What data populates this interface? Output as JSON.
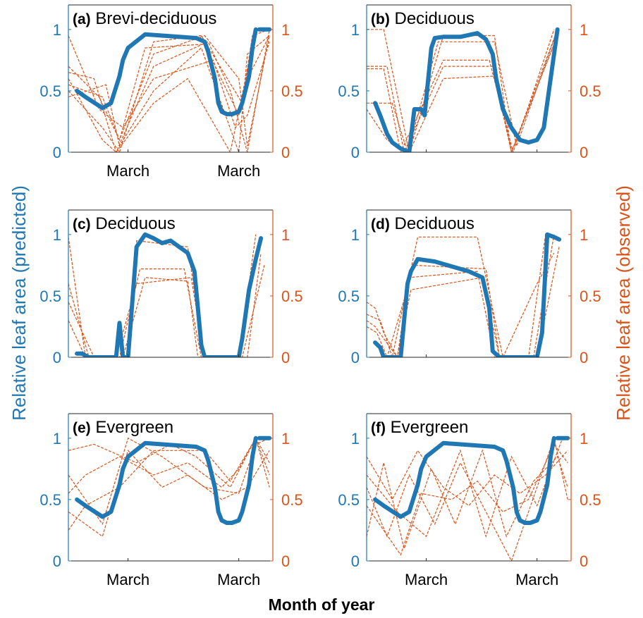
{
  "figure": {
    "y_left_label": "Relative leaf area (predicted)",
    "y_right_label": "Relative leaf area (observed)",
    "x_label": "Month of year",
    "colors": {
      "predicted": "#1f77b4",
      "observed": "#d9541a",
      "axis": "#262626"
    }
  },
  "chart_data": [
    {
      "type": "line",
      "title_tag": "(a)",
      "title": "Brevi-deciduous",
      "x_ticks": [
        "March",
        "March"
      ],
      "ylim_left": [
        0,
        1.2
      ],
      "ylim_right": [
        0,
        1.2
      ],
      "yticks_left": [
        "0",
        "0.5",
        "1"
      ],
      "yticks_right": [
        "0",
        "0.5",
        "1"
      ],
      "predicted": {
        "x": [
          0.05,
          0.1,
          0.2,
          0.25,
          0.3,
          0.32,
          0.35,
          0.45,
          0.55,
          0.65,
          0.75,
          0.8,
          0.82,
          0.86,
          0.88,
          0.9,
          0.93,
          0.96,
          1.0,
          1.02,
          1.06,
          1.08,
          1.1
        ],
        "y": [
          0.5,
          0.45,
          0.36,
          0.4,
          0.62,
          0.75,
          0.85,
          0.96,
          0.95,
          0.94,
          0.93,
          0.9,
          0.82,
          0.6,
          0.4,
          0.33,
          0.31,
          0.31,
          0.33,
          0.4,
          0.62,
          0.85,
          1.0
        ],
        "tail_x": [
          1.12,
          1.18
        ],
        "tail_y": [
          1.0,
          1.0
        ]
      },
      "observed": [
        [
          0.0,
          0.55,
          0.2,
          0.45,
          0.3,
          0.1,
          0.5,
          0.8,
          0.8,
          0.95,
          1.0,
          0.6,
          1.05,
          0.05,
          1.18,
          0.95
        ],
        [
          0.0,
          0.65,
          0.15,
          0.6,
          0.28,
          0.0,
          0.5,
          0.7,
          0.82,
          0.9,
          0.95,
          0.5,
          1.05,
          0.0,
          1.18,
          1.0
        ],
        [
          0.0,
          0.95,
          0.18,
          0.35,
          0.32,
          0.2,
          0.5,
          0.6,
          0.85,
          0.75,
          0.98,
          0.2,
          1.05,
          0.3,
          1.18,
          0.9
        ],
        [
          0.0,
          0.45,
          0.22,
          0.55,
          0.3,
          0.05,
          0.5,
          0.5,
          0.78,
          0.85,
          1.0,
          0.0,
          1.05,
          0.8,
          1.18,
          0.95
        ],
        [
          0.0,
          0.5,
          0.2,
          0.2,
          0.3,
          0.0,
          0.5,
          0.9,
          0.78,
          0.95,
          1.02,
          0.4,
          1.08,
          0.95,
          1.18,
          1.0
        ],
        [
          0.0,
          0.7,
          0.18,
          0.45,
          0.3,
          0.1,
          0.45,
          0.85,
          0.8,
          0.88,
          1.0,
          0.3,
          1.05,
          0.6,
          1.18,
          0.95
        ],
        [
          0.0,
          0.6,
          0.2,
          0.1,
          0.28,
          0.0,
          0.5,
          0.4,
          0.7,
          0.6,
          0.95,
          0.0,
          1.1,
          1.0,
          1.18,
          1.0
        ]
      ]
    },
    {
      "type": "line",
      "title_tag": "(b)",
      "title": "Deciduous",
      "x_ticks": [],
      "ylim_left": [
        0,
        1.2
      ],
      "ylim_right": [
        0,
        1.2
      ],
      "yticks_left": [
        "0",
        "0.5",
        "1"
      ],
      "yticks_right": [
        "0",
        "0.5",
        "1"
      ],
      "predicted": {
        "x": [
          0.05,
          0.08,
          0.12,
          0.15,
          0.2,
          0.25,
          0.28,
          0.32,
          0.34,
          0.38,
          0.4,
          0.45,
          0.55,
          0.65,
          0.7,
          0.74,
          0.76,
          0.8,
          0.85,
          0.9,
          0.95,
          1.0,
          1.04,
          1.08,
          1.12
        ],
        "y": [
          0.4,
          0.3,
          0.15,
          0.08,
          0.03,
          0.0,
          0.35,
          0.35,
          0.3,
          0.85,
          0.93,
          0.94,
          0.94,
          0.97,
          0.92,
          0.8,
          0.6,
          0.35,
          0.2,
          0.1,
          0.08,
          0.1,
          0.2,
          0.6,
          1.0
        ]
      },
      "observed": [
        [
          0.0,
          1.0,
          0.1,
          1.0,
          0.25,
          0.0,
          0.45,
          0.95,
          0.75,
          0.95,
          0.85,
          0.0,
          1.12,
          1.0
        ],
        [
          0.0,
          0.7,
          0.12,
          0.7,
          0.22,
          0.0,
          0.45,
          0.7,
          0.75,
          0.7,
          0.85,
          0.0,
          1.12,
          0.95
        ],
        [
          0.0,
          0.4,
          0.15,
          0.4,
          0.24,
          0.0,
          0.42,
          0.9,
          0.75,
          0.9,
          0.88,
          0.05,
          1.12,
          1.0
        ],
        [
          0.0,
          0.35,
          0.12,
          0.1,
          0.25,
          0.0,
          0.45,
          0.6,
          0.75,
          0.62,
          0.85,
          0.0,
          1.12,
          0.95
        ],
        [
          0.0,
          0.68,
          0.1,
          0.68,
          0.2,
          0.0,
          0.45,
          0.75,
          0.72,
          0.75,
          0.86,
          0.0,
          1.1,
          1.0
        ]
      ]
    },
    {
      "type": "line",
      "title_tag": "(c)",
      "title": "Deciduous",
      "x_ticks": [],
      "ylim_left": [
        0,
        1.2
      ],
      "ylim_right": [
        0,
        1.2
      ],
      "yticks_left": [
        "0",
        "0.5",
        "1"
      ],
      "yticks_right": [
        "0",
        "0.5",
        "1"
      ],
      "predicted": {
        "x": [
          0.05,
          0.08,
          0.12,
          0.2,
          0.28,
          0.3,
          0.32,
          0.35,
          0.4,
          0.45,
          0.5,
          0.55,
          0.6,
          0.65,
          0.7,
          0.74,
          0.76,
          0.78,
          0.8,
          0.85,
          0.9,
          0.95,
          1.0,
          1.02,
          1.06,
          1.1,
          1.13
        ],
        "y": [
          0.03,
          0.03,
          0.0,
          0.0,
          0.0,
          0.28,
          0.0,
          0.0,
          0.9,
          1.0,
          0.97,
          0.93,
          0.95,
          0.9,
          0.85,
          0.7,
          0.4,
          0.1,
          0.0,
          0.0,
          0.0,
          0.0,
          0.0,
          0.15,
          0.55,
          0.8,
          0.97
        ]
      },
      "observed": [
        [
          0.0,
          0.98,
          0.1,
          0.0,
          0.35,
          0.0,
          0.4,
          0.95,
          0.7,
          0.9,
          0.8,
          0.0,
          1.0,
          0.0,
          1.1,
          1.0
        ],
        [
          0.0,
          0.6,
          0.12,
          0.0,
          0.3,
          0.0,
          0.42,
          0.72,
          0.68,
          0.72,
          0.78,
          0.0,
          1.02,
          0.0,
          1.15,
          0.75
        ],
        [
          0.0,
          0.45,
          0.15,
          0.0,
          0.32,
          0.0,
          0.45,
          0.65,
          0.7,
          0.62,
          0.76,
          0.0,
          1.0,
          0.0,
          1.12,
          0.95
        ],
        [
          0.0,
          0.3,
          0.1,
          0.0,
          0.28,
          0.0,
          0.4,
          0.6,
          0.72,
          0.65,
          0.8,
          0.0,
          1.05,
          0.0,
          1.13,
          0.85
        ]
      ]
    },
    {
      "type": "line",
      "title_tag": "(d)",
      "title": "Deciduous",
      "x_ticks": [],
      "ylim_left": [
        0,
        1.2
      ],
      "ylim_right": [
        0,
        1.2
      ],
      "yticks_left": [
        "0",
        "0.5",
        "1"
      ],
      "yticks_right": [
        "0",
        "0.5",
        "1"
      ],
      "predicted": {
        "x": [
          0.05,
          0.08,
          0.1,
          0.15,
          0.2,
          0.24,
          0.26,
          0.3,
          0.4,
          0.5,
          0.6,
          0.68,
          0.72,
          0.74,
          0.78,
          0.85,
          0.9,
          0.95,
          1.0,
          1.03,
          1.06,
          1.1,
          1.13
        ],
        "y": [
          0.12,
          0.08,
          0.0,
          0.0,
          0.0,
          0.6,
          0.7,
          0.8,
          0.78,
          0.74,
          0.7,
          0.65,
          0.4,
          0.05,
          0.0,
          0.0,
          0.0,
          0.0,
          0.0,
          0.2,
          1.0,
          0.98,
          0.96
        ]
      },
      "observed": [
        [
          0.0,
          0.45,
          0.05,
          0.4,
          0.1,
          0.2,
          0.18,
          0.0,
          0.25,
          0.65,
          0.65,
          0.7,
          0.75,
          0.0,
          0.95,
          0.0,
          1.05,
          1.0,
          1.13,
          0.95
        ],
        [
          0.0,
          0.35,
          0.08,
          0.3,
          0.15,
          0.0,
          0.3,
          0.98,
          0.65,
          0.98,
          0.8,
          0.0,
          1.0,
          0.6,
          1.1,
          0.85
        ],
        [
          0.0,
          0.25,
          0.06,
          0.2,
          0.12,
          0.0,
          0.28,
          0.75,
          0.7,
          0.72,
          0.78,
          0.0,
          0.98,
          0.0,
          1.1,
          1.0
        ],
        [
          0.0,
          0.3,
          0.05,
          0.25,
          0.18,
          0.0,
          0.26,
          0.55,
          0.68,
          0.65,
          0.78,
          0.0,
          1.0,
          0.0,
          1.13,
          0.9
        ]
      ]
    },
    {
      "type": "line",
      "title_tag": "(e)",
      "title": "Evergreen",
      "x_ticks": [
        "March",
        "March"
      ],
      "ylim_left": [
        0,
        1.2
      ],
      "ylim_right": [
        0,
        1.2
      ],
      "yticks_left": [
        "0",
        "0.5",
        "1"
      ],
      "yticks_right": [
        "0",
        "0.5",
        "1"
      ],
      "predicted": {
        "x": [
          0.05,
          0.1,
          0.2,
          0.25,
          0.3,
          0.32,
          0.35,
          0.45,
          0.55,
          0.65,
          0.75,
          0.8,
          0.82,
          0.86,
          0.88,
          0.9,
          0.93,
          0.96,
          1.0,
          1.02,
          1.06,
          1.08,
          1.1
        ],
        "y": [
          0.5,
          0.45,
          0.36,
          0.4,
          0.62,
          0.75,
          0.85,
          0.96,
          0.95,
          0.94,
          0.93,
          0.9,
          0.82,
          0.6,
          0.4,
          0.33,
          0.31,
          0.31,
          0.33,
          0.4,
          0.62,
          0.85,
          1.0
        ],
        "tail_x": [
          1.12,
          1.18
        ],
        "tail_y": [
          1.0,
          1.0
        ]
      },
      "observed": [
        [
          0.0,
          0.55,
          0.1,
          0.7,
          0.3,
          0.85,
          0.5,
          0.7,
          0.7,
          0.8,
          0.9,
          0.6,
          1.0,
          0.75,
          1.1,
          1.0,
          1.18,
          0.8
        ],
        [
          0.0,
          0.7,
          0.2,
          0.3,
          0.35,
          1.0,
          0.55,
          0.85,
          0.8,
          0.6,
          1.0,
          0.55,
          1.1,
          0.95,
          1.18,
          1.0
        ],
        [
          0.0,
          0.9,
          0.15,
          0.95,
          0.4,
          0.8,
          0.6,
          0.95,
          0.75,
          0.85,
          0.95,
          0.6,
          1.1,
          1.0,
          1.18,
          0.7
        ],
        [
          0.0,
          0.4,
          0.2,
          0.2,
          0.35,
          0.9,
          0.55,
          0.6,
          0.7,
          0.7,
          0.9,
          0.5,
          1.05,
          0.6,
          1.18,
          0.9
        ],
        [
          0.0,
          0.25,
          0.1,
          0.45,
          0.3,
          0.6,
          0.5,
          0.9,
          0.8,
          0.9,
          0.95,
          0.65,
          1.1,
          1.0,
          1.18,
          0.6
        ]
      ]
    },
    {
      "type": "line",
      "title_tag": "(f)",
      "title": "Evergreen",
      "x_ticks": [
        "March",
        "March"
      ],
      "ylim_left": [
        0,
        1.2
      ],
      "ylim_right": [
        0,
        1.2
      ],
      "yticks_left": [
        "0",
        "0.5",
        "1"
      ],
      "yticks_right": [
        "0",
        "0.5",
        "1"
      ],
      "predicted": {
        "x": [
          0.05,
          0.1,
          0.2,
          0.25,
          0.3,
          0.32,
          0.35,
          0.45,
          0.55,
          0.65,
          0.75,
          0.8,
          0.82,
          0.86,
          0.88,
          0.9,
          0.93,
          0.96,
          1.0,
          1.02,
          1.06,
          1.08,
          1.1
        ],
        "y": [
          0.5,
          0.45,
          0.36,
          0.4,
          0.62,
          0.75,
          0.85,
          0.96,
          0.95,
          0.94,
          0.93,
          0.9,
          0.82,
          0.6,
          0.4,
          0.33,
          0.31,
          0.31,
          0.33,
          0.4,
          0.62,
          0.85,
          1.0
        ],
        "tail_x": [
          1.12,
          1.18
        ],
        "tail_y": [
          1.0,
          1.0
        ]
      },
      "observed": [
        [
          0.0,
          0.6,
          0.12,
          0.2,
          0.25,
          0.7,
          0.4,
          0.3,
          0.55,
          0.8,
          0.7,
          0.4,
          0.85,
          0.0,
          1.0,
          0.6,
          1.1,
          1.0,
          1.18,
          0.5
        ],
        [
          0.0,
          0.85,
          0.15,
          0.5,
          0.3,
          0.9,
          0.45,
          0.6,
          0.6,
          0.45,
          0.75,
          0.7,
          0.9,
          0.55,
          1.05,
          0.7,
          1.18,
          0.9
        ],
        [
          0.0,
          0.2,
          0.1,
          0.8,
          0.22,
          0.1,
          0.38,
          0.75,
          0.52,
          0.3,
          0.68,
          0.9,
          0.82,
          0.2,
          0.98,
          0.65,
          1.12,
          0.85,
          1.18,
          0.6
        ],
        [
          0.0,
          0.45,
          0.2,
          0.05,
          0.32,
          0.55,
          0.5,
          0.5,
          0.65,
          0.65,
          0.8,
          0.4,
          0.95,
          0.5,
          1.1,
          0.95,
          1.18,
          0.8
        ],
        [
          0.0,
          0.7,
          0.18,
          0.4,
          0.35,
          0.2,
          0.55,
          0.9,
          0.7,
          0.2,
          0.85,
          0.85,
          1.0,
          0.45,
          1.15,
          1.0
        ]
      ]
    }
  ]
}
